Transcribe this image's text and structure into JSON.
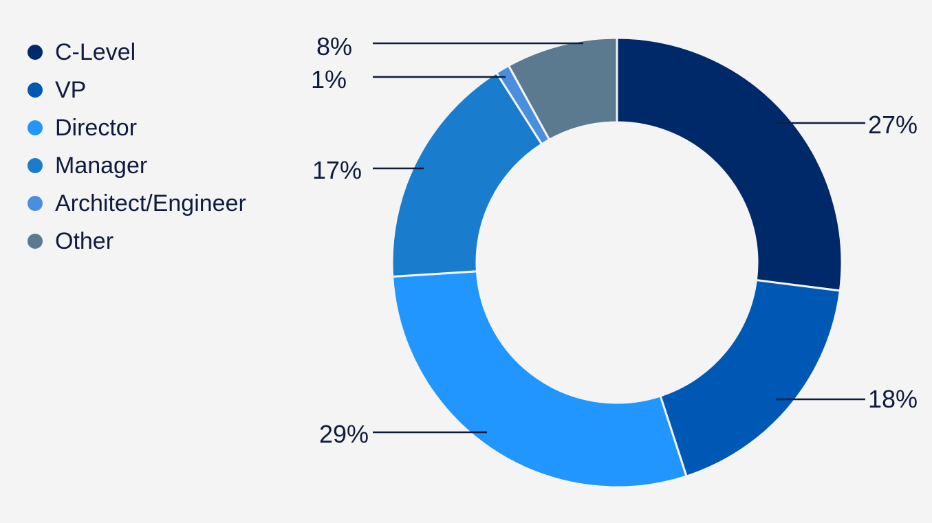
{
  "chart_data": {
    "type": "pie",
    "variant": "donut",
    "title": "",
    "legend_position": "left",
    "series": [
      {
        "name": "C-Level",
        "value": 27,
        "label": "27%",
        "color": "#00296a"
      },
      {
        "name": "VP",
        "value": 18,
        "label": "18%",
        "color": "#0058b5"
      },
      {
        "name": "Director",
        "value": 29,
        "label": "29%",
        "color": "#2196fe"
      },
      {
        "name": "Manager",
        "value": 17,
        "label": "17%",
        "color": "#1a7ccd"
      },
      {
        "name": "Architect/Engineer",
        "value": 1,
        "label": "1%",
        "color": "#4a8fdd"
      },
      {
        "name": "Other",
        "value": 8,
        "label": "8%",
        "color": "#5b7a8f"
      }
    ]
  }
}
